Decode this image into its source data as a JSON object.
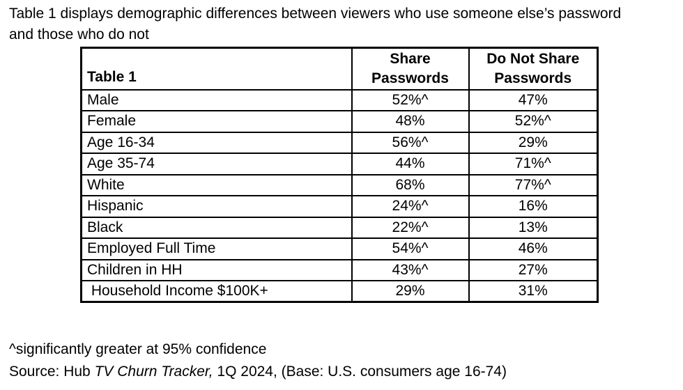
{
  "intro": {
    "lines": [
      "Table 1 displays demographic differences between viewers who use someone else’s password",
      "and those who do not"
    ]
  },
  "table": {
    "corner_label": "Table 1",
    "columns": [
      {
        "line1": "Share",
        "line2": "Passwords"
      },
      {
        "line1": "Do Not Share",
        "line2": "Passwords"
      }
    ],
    "rows": [
      {
        "label": "Male",
        "share": "52%^",
        "no_share": "47%"
      },
      {
        "label": "Female",
        "share": "48%",
        "no_share": "52%^"
      },
      {
        "label": "Age 16-34",
        "share": "56%^",
        "no_share": "29%"
      },
      {
        "label": "Age 35-74",
        "share": "44%",
        "no_share": "71%^"
      },
      {
        "label": "White",
        "share": "68%",
        "no_share": "77%^"
      },
      {
        "label": "Hispanic",
        "share": "24%^",
        "no_share": "16%"
      },
      {
        "label": "Black",
        "share": "22%^",
        "no_share": "13%"
      },
      {
        "label": "Employed Full Time",
        "share": "54%^",
        "no_share": "46%"
      },
      {
        "label": "Children in HH",
        "share": "43%^",
        "no_share": "27%"
      },
      {
        "label": " Household Income $100K+",
        "share": "29%",
        "no_share": "31%"
      }
    ]
  },
  "footnotes": {
    "significance": "^significantly greater at 95% confidence",
    "source_prefix": "Source: Hub ",
    "source_italic": "TV Churn Tracker,",
    "source_suffix": " 1Q 2024, (Base: U.S. consumers age 16-74)"
  },
  "chart_data": {
    "type": "table",
    "title": "Table 1",
    "columns": [
      "Table 1",
      "Share Passwords",
      "Do Not Share Passwords"
    ],
    "categories": [
      "Male",
      "Female",
      "Age 16-34",
      "Age 35-74",
      "White",
      "Hispanic",
      "Black",
      "Employed Full Time",
      "Children in HH",
      "Household Income $100K+"
    ],
    "series": [
      {
        "name": "Share Passwords",
        "values": [
          52,
          48,
          56,
          44,
          68,
          24,
          22,
          54,
          43,
          29
        ]
      },
      {
        "name": "Do Not Share Passwords",
        "values": [
          47,
          52,
          29,
          71,
          77,
          16,
          13,
          46,
          27,
          31
        ]
      }
    ],
    "significant_share": [
      true,
      false,
      true,
      false,
      false,
      true,
      true,
      true,
      true,
      false
    ],
    "significant_no_share": [
      false,
      true,
      false,
      true,
      true,
      false,
      false,
      false,
      false,
      false
    ],
    "annotation": "^significantly greater at 95% confidence"
  }
}
